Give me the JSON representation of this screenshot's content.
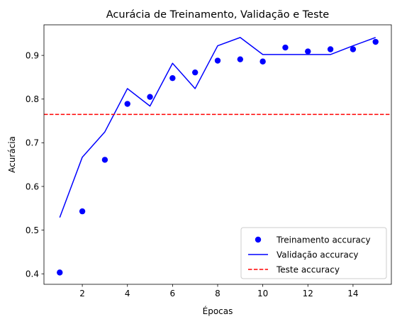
{
  "chart_data": {
    "type": "line",
    "title": "Acurácia de Treinamento, Validação e Teste",
    "xlabel": "Épocas",
    "ylabel": "Acurácia",
    "xlim": [
      0.3,
      15.7
    ],
    "ylim": [
      0.376,
      0.97
    ],
    "xticks": [
      2,
      4,
      6,
      8,
      10,
      12,
      14
    ],
    "yticks": [
      0.4,
      0.5,
      0.6,
      0.7,
      0.8,
      0.9
    ],
    "xtick_labels": [
      "2",
      "4",
      "6",
      "8",
      "10",
      "12",
      "14"
    ],
    "ytick_labels": [
      "0.4",
      "0.5",
      "0.6",
      "0.7",
      "0.8",
      "0.9"
    ],
    "grid": false,
    "legend_position": "lower-right",
    "x": [
      1,
      2,
      3,
      4,
      5,
      6,
      7,
      8,
      9,
      10,
      11,
      12,
      13,
      14,
      15
    ],
    "series": [
      {
        "name": "Treinamento accuracy",
        "style": "points",
        "color": "#0000ff",
        "values": [
          0.403,
          0.543,
          0.661,
          0.789,
          0.805,
          0.848,
          0.861,
          0.888,
          0.891,
          0.886,
          0.918,
          0.909,
          0.914,
          0.914,
          0.931
        ]
      },
      {
        "name": "Validação accuracy",
        "style": "line",
        "color": "#0000ff",
        "values": [
          0.529,
          0.667,
          0.725,
          0.824,
          0.784,
          0.882,
          0.824,
          0.922,
          0.941,
          0.902,
          0.902,
          0.902,
          0.902,
          0.922,
          0.941
        ]
      },
      {
        "name": "Teste accuracy",
        "style": "hline-dashed",
        "color": "#ff0000",
        "value": 0.765
      }
    ]
  }
}
